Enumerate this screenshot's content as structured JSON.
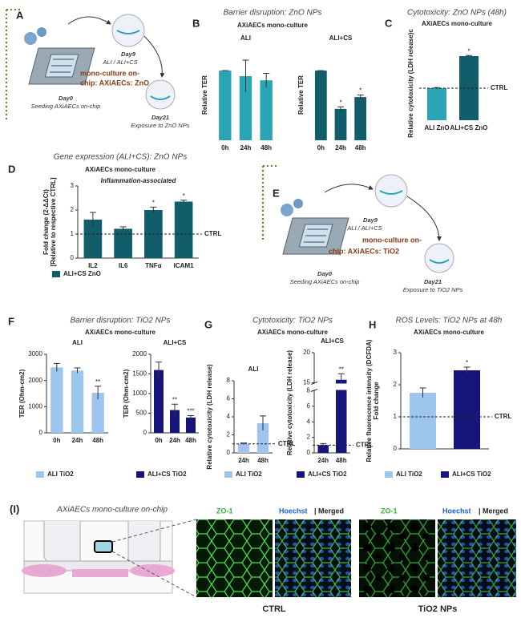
{
  "figure": {
    "headers": [
      {
        "label": "A"
      },
      {
        "label": "B",
        "title": "Barrier disruption: ZnO NPs",
        "subtitle": "AXiAECs mono-culture"
      },
      {
        "label": "C",
        "title": "Cytotoxicity: ZnO NPs (48h)",
        "subtitle": "AXiAECs mono-culture"
      },
      {
        "label": "D",
        "title": "Gene expression (ALI+CS): ZnO NPs",
        "subtitle": "AXiAECs mono-culture"
      },
      {
        "label": "E"
      },
      {
        "label": "F",
        "title": "Barrier disruption: TiO2 NPs",
        "subtitle": "AXiAECs mono-culture"
      },
      {
        "label": "G",
        "title": "Cytotoxicity: TiO2 NPs",
        "subtitle": "AXiAECs mono-culture"
      },
      {
        "label": "H",
        "title": "ROS Levels: TiO2 NPs at 48h",
        "subtitle": "AXiAECs mono-culture"
      },
      {
        "label": "(I)",
        "title": "AXiAECs mono-culture on-chip"
      }
    ],
    "diagram_A": {
      "day9": "Day9",
      "condition": "ALI / ALI+CS",
      "culture1": "mono-culture on-",
      "culture2": "chip: AXiAECs: ZnO",
      "day0": "Day0",
      "seeding": "Seeding AXiAECs on-chip",
      "day21": "Day21",
      "exposure": "Exposure to ZnO NPs"
    },
    "diagram_E": {
      "day9": "Day9",
      "condition": "ALI / ALI+CS",
      "culture1": "mono-culture on-",
      "culture2": "chip: AXiAECs: TiO2",
      "day0": "Day0",
      "seeding": "Seeding AXiAECs on-chip",
      "day21": "Day21",
      "exposure": "Exposure to TiO2 NPs"
    },
    "micrographs": {
      "zo1": "ZO-1",
      "hoechst": "Hoechst",
      "merged": "| Merged",
      "ctrl": "CTRL",
      "tio2": "TiO2 NPs"
    }
  },
  "chart_data": [
    {
      "type": "bar",
      "title": "ALI",
      "ylabel": "Relative TER",
      "categories": [
        "0h",
        "24h",
        "48h"
      ],
      "values": [
        1.0,
        0.92,
        0.86
      ],
      "errors": [
        0,
        0.23,
        0.1
      ],
      "colors": [
        "#2aa5b5",
        "#2aa5b5",
        "#2aa5b5"
      ],
      "ylim": [
        0,
        1.3
      ]
    },
    {
      "type": "bar",
      "title": "ALI+CS",
      "ylabel": "Relative TER",
      "categories": [
        "0h",
        "24h",
        "48h"
      ],
      "values": [
        1.0,
        0.45,
        0.62
      ],
      "errors": [
        0,
        0.03,
        0.03
      ],
      "significance": [
        null,
        "*",
        "*"
      ],
      "colors": [
        "#125d6b",
        "#125d6b",
        "#125d6b"
      ],
      "ylim": [
        0,
        1.3
      ]
    },
    {
      "type": "bar",
      "ylabel": "Relative cytotoxicity (LDH release)c",
      "categories": [
        "ALI ZnO",
        "ALI+CS ZnO"
      ],
      "values": [
        1.0,
        2.0
      ],
      "errors": [
        0.02,
        0.02
      ],
      "significance": [
        null,
        "*"
      ],
      "colors": [
        "#2aa5b5",
        "#125d6b"
      ],
      "ylim": [
        0,
        2.3
      ],
      "reference": {
        "value": 1,
        "label": "CTRL"
      }
    },
    {
      "type": "bar",
      "note": "Inflammation-associated",
      "ylabel": [
        "Fold change (2-ΔΔCt)",
        "[Relative to respective CTRL]"
      ],
      "categories": [
        "IL2",
        "IL6",
        "TNFα",
        "ICAM1"
      ],
      "values": [
        1.6,
        1.22,
        2.0,
        2.35
      ],
      "errors": [
        0.3,
        0.08,
        0.12,
        0.06
      ],
      "significance": [
        null,
        null,
        "*",
        "*"
      ],
      "colors": [
        "#125d6b",
        "#125d6b",
        "#125d6b",
        "#125d6b"
      ],
      "ylim": [
        0,
        3
      ],
      "yticks": [
        0,
        1,
        2,
        3
      ],
      "reference": {
        "value": 1,
        "label": "CTRL"
      },
      "legend": [
        {
          "name": "ALI+CS ZnO",
          "color": "#125d6b"
        }
      ]
    },
    {
      "type": "bar",
      "title": "ALI",
      "ylabel": "TER (Ohm-cm2)",
      "categories": [
        "0h",
        "24h",
        "48h"
      ],
      "values": [
        2500,
        2380,
        1530
      ],
      "errors": [
        150,
        100,
        250
      ],
      "significance": [
        null,
        null,
        "**"
      ],
      "colors": [
        "#9ec5ee",
        "#9ec5ee",
        "#9ec5ee"
      ],
      "ylim": [
        0,
        3000
      ],
      "yticks": [
        0,
        1000,
        2000,
        3000
      ],
      "legend": [
        {
          "name": "ALI TiO2",
          "color": "#9ec5ee"
        }
      ]
    },
    {
      "type": "bar",
      "title": "ALI+CS",
      "ylabel": "TER (Ohm-cm2)",
      "categories": [
        "0h",
        "24h",
        "48h"
      ],
      "values": [
        1600,
        580,
        390
      ],
      "errors": [
        200,
        150,
        50
      ],
      "significance": [
        null,
        "**",
        "***"
      ],
      "colors": [
        "#16167a",
        "#16167a",
        "#16167a"
      ],
      "ylim": [
        0,
        2000
      ],
      "yticks": [
        0,
        500,
        1000,
        1500,
        2000
      ],
      "legend": [
        {
          "name": "ALI+CS TiO2",
          "color": "#16167a"
        }
      ]
    },
    {
      "type": "bar",
      "title": "ALI",
      "ylabel": "Relative cytotoxicity (LDH release)",
      "categories": [
        "24h",
        "48h"
      ],
      "values": [
        1.0,
        3.3
      ],
      "errors": [
        0.1,
        0.8
      ],
      "colors": [
        "#9ec5ee",
        "#9ec5ee"
      ],
      "ylim": [
        0,
        8
      ],
      "yticks": [
        0,
        2,
        4,
        6,
        8
      ],
      "reference": {
        "value": 1,
        "label": "CTRL"
      },
      "legend": [
        {
          "name": "ALI TiO2",
          "color": "#9ec5ee"
        }
      ]
    },
    {
      "type": "bar",
      "title": "ALI+CS",
      "ylabel": "Relative cytotoxicity (LDH release)",
      "categories": [
        "24h",
        "48h"
      ],
      "values": [
        1.0,
        15.5
      ],
      "errors": [
        0.2,
        1.0
      ],
      "significance": [
        null,
        "**"
      ],
      "colors": [
        "#16167a",
        "#16167a"
      ],
      "ylim": [
        0,
        20
      ],
      "yticks": [
        0,
        2,
        4,
        6,
        8,
        15,
        20
      ],
      "axis_break": [
        8,
        15
      ],
      "reference": {
        "value": 1,
        "label": "CTRL"
      },
      "legend": [
        {
          "name": "ALI+CS TiO2",
          "color": "#16167a"
        }
      ]
    },
    {
      "type": "bar",
      "ylabel": [
        "Relative fluorescence intensity (DCFDA)",
        "Fold change"
      ],
      "categories": [
        null,
        null
      ],
      "values": [
        1.75,
        2.45
      ],
      "errors": [
        0.15,
        0.1
      ],
      "significance": [
        null,
        "*"
      ],
      "colors": [
        "#9ec5ee",
        "#16167a"
      ],
      "ylim": [
        0,
        3
      ],
      "yticks": [
        0,
        1,
        2,
        3
      ],
      "reference": {
        "value": 1,
        "label": "CTRL"
      },
      "legend": [
        {
          "name": "ALI TiO2",
          "color": "#9ec5ee"
        },
        {
          "name": "ALI+CS TiO2",
          "color": "#16167a"
        }
      ]
    }
  ]
}
